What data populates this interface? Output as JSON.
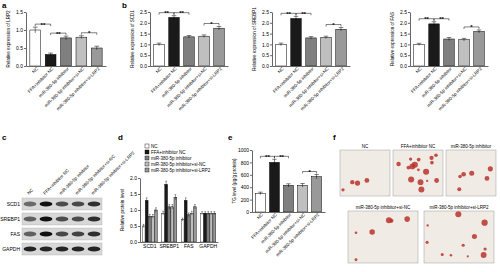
{
  "chart_data": [
    {
      "type": "bar",
      "y_label": "Relative expression of LRP2",
      "categories": [
        "NC",
        "FFA+inhibitor NC",
        "miR-380-5p inhibitor",
        "miR-380-5p inhibitor+si-NC",
        "miR-380-5p inhibitor+si-LRP2"
      ],
      "values": [
        1,
        0.32,
        0.78,
        0.8,
        0.5
      ],
      "errors": [
        0.08,
        0.04,
        0.05,
        0.04,
        0.05
      ],
      "colors": [
        "#ffffff",
        "#1a1a1a",
        "#7f7f7f",
        "#bfbfbf",
        "#999999"
      ],
      "ylim": [
        0,
        1.5
      ],
      "yticks": [
        {
          "value": 0,
          "label": "0.0"
        },
        0.5,
        {
          "value": 1,
          "label": "1.0"
        },
        1.5
      ],
      "annotations": [
        {
          "pair": [
            0,
            1
          ],
          "label": "**"
        },
        {
          "pair": [
            1,
            2
          ],
          "label": "**"
        },
        {
          "pair": [
            3,
            4
          ],
          "label": "*"
        }
      ]
    },
    {
      "type": "bar",
      "y_label": "Relative expression of SCD1",
      "categories": [
        "NC",
        "FFA+inhibitor NC",
        "miR-380-5p inhibitor",
        "miR-380-5p inhibitor+si-NC",
        "miR-380-5p inhibitor+si-LRP2"
      ],
      "values": [
        1,
        2.25,
        1.35,
        1.38,
        1.75
      ],
      "errors": [
        0.06,
        0.08,
        0.06,
        0.06,
        0.08
      ],
      "colors": [
        "#ffffff",
        "#1a1a1a",
        "#7f7f7f",
        "#bfbfbf",
        "#999999"
      ],
      "ylim": [
        0,
        2.5
      ],
      "yticks": [
        {
          "value": 0,
          "label": "0.0"
        },
        0.5,
        {
          "value": 1,
          "label": "1.0"
        },
        1.5,
        {
          "value": 2,
          "label": "2.0"
        },
        2.5
      ],
      "annotations": [
        {
          "pair": [
            0,
            1
          ],
          "label": "**"
        },
        {
          "pair": [
            1,
            2
          ],
          "label": "**"
        },
        {
          "pair": [
            3,
            4
          ],
          "label": "*"
        }
      ]
    },
    {
      "type": "bar",
      "y_label": "Relative expression of SREBP1",
      "categories": [
        "NC",
        "FFA+inhibitor NC",
        "miR-380-5p inhibitor",
        "miR-380-5p inhibitor+si-NC",
        "miR-380-5p inhibitor+si-LRP2"
      ],
      "values": [
        1,
        2.2,
        1.3,
        1.32,
        1.7
      ],
      "errors": [
        0.06,
        0.1,
        0.06,
        0.06,
        0.08
      ],
      "colors": [
        "#ffffff",
        "#1a1a1a",
        "#7f7f7f",
        "#bfbfbf",
        "#999999"
      ],
      "ylim": [
        0,
        2.5
      ],
      "yticks": [
        {
          "value": 0,
          "label": "0.0"
        },
        0.5,
        {
          "value": 1,
          "label": "1.0"
        },
        1.5,
        {
          "value": 2,
          "label": "2.0"
        },
        2.5
      ],
      "annotations": [
        {
          "pair": [
            0,
            1
          ],
          "label": "**"
        },
        {
          "pair": [
            1,
            2
          ],
          "label": "**"
        },
        {
          "pair": [
            3,
            4
          ],
          "label": "*"
        }
      ]
    },
    {
      "type": "bar",
      "y_label": "Relative expression of FAS",
      "categories": [
        "NC",
        "FFA+inhibitor NC",
        "miR-380-5p inhibitor",
        "miR-380-5p inhibitor+si-NC",
        "miR-380-5p inhibitor+si-LRP2"
      ],
      "values": [
        1,
        1.95,
        1.25,
        1.22,
        1.6
      ],
      "errors": [
        0.05,
        0.1,
        0.07,
        0.06,
        0.07
      ],
      "colors": [
        "#ffffff",
        "#1a1a1a",
        "#7f7f7f",
        "#bfbfbf",
        "#999999"
      ],
      "ylim": [
        0,
        2.5
      ],
      "yticks": [
        {
          "value": 0,
          "label": "0.0"
        },
        0.5,
        {
          "value": 1,
          "label": "1.0"
        },
        1.5,
        {
          "value": 2,
          "label": "2.0"
        },
        2.5
      ],
      "annotations": [
        {
          "pair": [
            0,
            1
          ],
          "label": "**"
        },
        {
          "pair": [
            1,
            2
          ],
          "label": "**"
        },
        {
          "pair": [
            3,
            4
          ],
          "label": "*"
        }
      ]
    },
    {
      "type": "grouped_bar",
      "y_label": "Relative protein level",
      "categories": [
        "SCD1",
        "SREBP1",
        "FAS",
        "GAPDH"
      ],
      "series": [
        {
          "name": "NC",
          "color": "#ffffff",
          "values": [
            0.5,
            0.9,
            0.7,
            0.9
          ],
          "errors": [
            0.05,
            0.06,
            0.05,
            0.05
          ]
        },
        {
          "name": "FFA+inhibitor NC",
          "color": "#1a1a1a",
          "values": [
            1.3,
            1.8,
            1.3,
            0.9
          ],
          "errors": [
            0.08,
            0.1,
            0.08,
            0.05
          ]
        },
        {
          "name": "miR-380-5p inhibitor",
          "color": "#7f7f7f",
          "values": [
            0.8,
            1.1,
            0.85,
            0.9
          ],
          "errors": [
            0.06,
            0.07,
            0.06,
            0.05
          ]
        },
        {
          "name": "miR-380-5p inhibitor+si-NC",
          "color": "#bfbfbf",
          "values": [
            0.8,
            1.1,
            0.9,
            0.9
          ],
          "errors": [
            0.06,
            0.07,
            0.06,
            0.05
          ]
        },
        {
          "name": "miR-380-5p inhibitor+si-LRP2",
          "color": "#999999",
          "values": [
            1,
            1.4,
            1.1,
            0.9
          ],
          "errors": [
            0.07,
            0.08,
            0.07,
            0.05
          ]
        }
      ],
      "ylim": [
        0,
        2
      ],
      "yticks": [
        {
          "value": 0,
          "label": "0.0"
        },
        0.5,
        {
          "value": 1,
          "label": "1.0"
        },
        1.5,
        {
          "value": 2,
          "label": "2.0"
        }
      ],
      "legend": "top"
    },
    {
      "type": "bar",
      "y_label": "TG level (μg/g protein)",
      "categories": [
        "NC",
        "FFA+inhibitor NC",
        "miR-380-5p inhibitor",
        "miR-380-5p inhibitor+si-NC",
        "miR-380-5p inhibitor+si-LRP2"
      ],
      "values": [
        300,
        800,
        430,
        430,
        570
      ],
      "errors": [
        20,
        50,
        25,
        30,
        35
      ],
      "colors": [
        "#ffffff",
        "#1a1a1a",
        "#7f7f7f",
        "#bfbfbf",
        "#999999"
      ],
      "ylim": [
        0,
        1000
      ],
      "yticks": [
        0,
        200,
        400,
        600,
        800,
        1000
      ],
      "annotations": [
        {
          "pair": [
            0,
            1
          ],
          "label": "**"
        },
        {
          "pair": [
            1,
            2
          ],
          "label": "**"
        },
        {
          "pair": [
            3,
            4
          ],
          "label": "*"
        }
      ]
    }
  ],
  "panel_labels": [
    "a",
    "b",
    "c",
    "d",
    "e",
    "f"
  ],
  "blot": {
    "rows": [
      "SCD1",
      "SREBP1",
      "FAS",
      "GAPDH"
    ],
    "columns": [
      "NC",
      "FFA+inhibitor NC",
      "miR-380-5p inhibitor",
      "miR-380-5p inhibitor+si-NC",
      "miR-380-5p inhibitor+si-LRP2"
    ]
  },
  "micrographs": {
    "labels": [
      "NC",
      "FFA+inhibitor NC",
      "miR-380-5p inhibitor",
      "miR-380-5p inhibitor+si-NC",
      "miR-380-5p inhibitor+si-LRP2"
    ]
  }
}
